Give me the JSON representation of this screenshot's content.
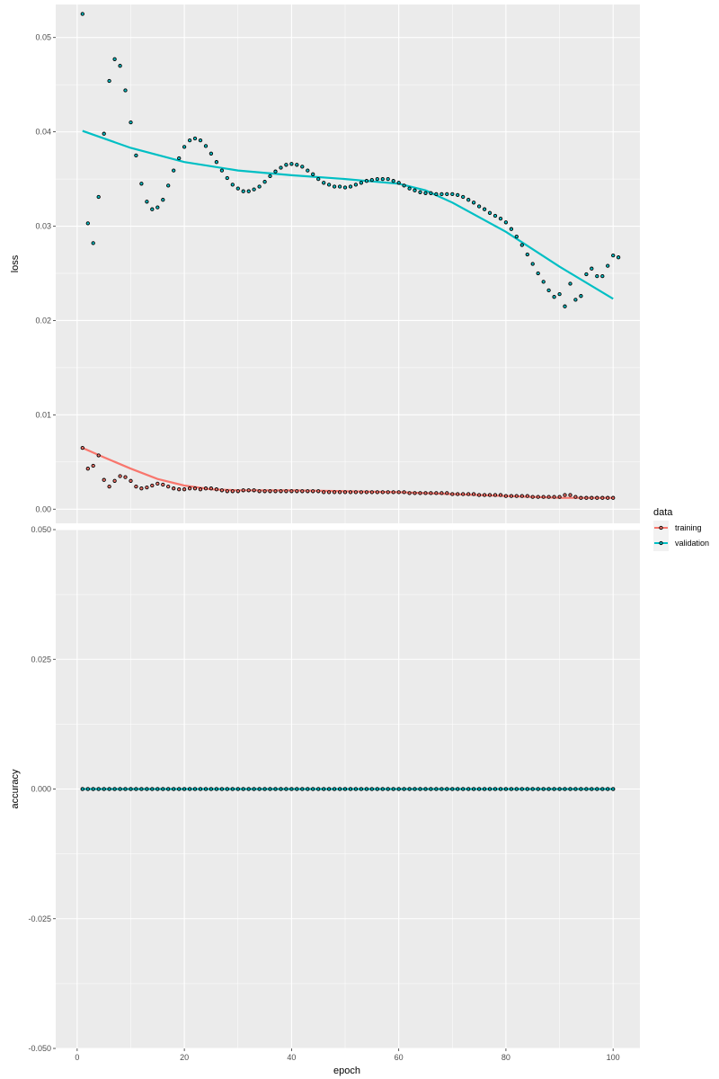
{
  "chart_data": {
    "type": "scatter",
    "facets": [
      {
        "name": "loss",
        "ylabel": "loss",
        "ylim": [
          -0.0015,
          0.0535
        ],
        "yticks": [
          0.0,
          0.01,
          0.02,
          0.03,
          0.04,
          0.05
        ],
        "ytick_labels": [
          "0.00",
          "0.01",
          "0.02",
          "0.03",
          "0.04",
          "0.05"
        ],
        "series": [
          {
            "name": "training",
            "points": [
              [
                1,
                0.0065
              ],
              [
                2,
                0.0043
              ],
              [
                3,
                0.0046
              ],
              [
                4,
                0.0057
              ],
              [
                5,
                0.0031
              ],
              [
                6,
                0.0024
              ],
              [
                7,
                0.003
              ],
              [
                8,
                0.0035
              ],
              [
                9,
                0.0034
              ],
              [
                10,
                0.003
              ],
              [
                11,
                0.0024
              ],
              [
                12,
                0.0022
              ],
              [
                13,
                0.0023
              ],
              [
                14,
                0.0025
              ],
              [
                15,
                0.0027
              ],
              [
                16,
                0.0026
              ],
              [
                17,
                0.0024
              ],
              [
                18,
                0.0022
              ],
              [
                19,
                0.0021
              ],
              [
                20,
                0.0021
              ],
              [
                21,
                0.0022
              ],
              [
                22,
                0.0022
              ],
              [
                23,
                0.0021
              ],
              [
                24,
                0.0022
              ],
              [
                25,
                0.0022
              ],
              [
                26,
                0.0021
              ],
              [
                27,
                0.002
              ],
              [
                28,
                0.0019
              ],
              [
                29,
                0.0019
              ],
              [
                30,
                0.0019
              ],
              [
                31,
                0.002
              ],
              [
                32,
                0.002
              ],
              [
                33,
                0.002
              ],
              [
                34,
                0.0019
              ],
              [
                35,
                0.0019
              ],
              [
                36,
                0.0019
              ],
              [
                37,
                0.0019
              ],
              [
                38,
                0.0019
              ],
              [
                39,
                0.0019
              ],
              [
                40,
                0.0019
              ],
              [
                41,
                0.0019
              ],
              [
                42,
                0.0019
              ],
              [
                43,
                0.0019
              ],
              [
                44,
                0.0019
              ],
              [
                45,
                0.0019
              ],
              [
                46,
                0.0018
              ],
              [
                47,
                0.0018
              ],
              [
                48,
                0.0018
              ],
              [
                49,
                0.0018
              ],
              [
                50,
                0.0018
              ],
              [
                51,
                0.0018
              ],
              [
                52,
                0.0018
              ],
              [
                53,
                0.0018
              ],
              [
                54,
                0.0018
              ],
              [
                55,
                0.0018
              ],
              [
                56,
                0.0018
              ],
              [
                57,
                0.0018
              ],
              [
                58,
                0.0018
              ],
              [
                59,
                0.0018
              ],
              [
                60,
                0.0018
              ],
              [
                61,
                0.0018
              ],
              [
                62,
                0.0017
              ],
              [
                63,
                0.0017
              ],
              [
                64,
                0.0017
              ],
              [
                65,
                0.0017
              ],
              [
                66,
                0.0017
              ],
              [
                67,
                0.0017
              ],
              [
                68,
                0.0017
              ],
              [
                69,
                0.0017
              ],
              [
                70,
                0.0016
              ],
              [
                71,
                0.0016
              ],
              [
                72,
                0.0016
              ],
              [
                73,
                0.0016
              ],
              [
                74,
                0.0016
              ],
              [
                75,
                0.0015
              ],
              [
                76,
                0.0015
              ],
              [
                77,
                0.0015
              ],
              [
                78,
                0.0015
              ],
              [
                79,
                0.0015
              ],
              [
                80,
                0.0014
              ],
              [
                81,
                0.0014
              ],
              [
                82,
                0.0014
              ],
              [
                83,
                0.0014
              ],
              [
                84,
                0.0014
              ],
              [
                85,
                0.0013
              ],
              [
                86,
                0.0013
              ],
              [
                87,
                0.0013
              ],
              [
                88,
                0.0013
              ],
              [
                89,
                0.0013
              ],
              [
                90,
                0.0013
              ],
              [
                91,
                0.0015
              ],
              [
                92,
                0.0015
              ],
              [
                93,
                0.0013
              ],
              [
                94,
                0.0012
              ],
              [
                95,
                0.0012
              ],
              [
                96,
                0.0012
              ],
              [
                97,
                0.0012
              ],
              [
                98,
                0.0012
              ],
              [
                99,
                0.0012
              ],
              [
                100,
                0.0012
              ]
            ],
            "trend": [
              [
                1,
                0.0065
              ],
              [
                5,
                0.0055
              ],
              [
                10,
                0.0043
              ],
              [
                15,
                0.0032
              ],
              [
                20,
                0.0025
              ],
              [
                25,
                0.0021
              ],
              [
                30,
                0.002
              ],
              [
                40,
                0.002
              ],
              [
                50,
                0.0019
              ],
              [
                60,
                0.0018
              ],
              [
                70,
                0.0016
              ],
              [
                80,
                0.0014
              ],
              [
                90,
                0.0012
              ],
              [
                100,
                0.0012
              ]
            ]
          },
          {
            "name": "validation",
            "points": [
              [
                1,
                0.0525
              ],
              [
                2,
                0.0303
              ],
              [
                3,
                0.0282
              ],
              [
                4,
                0.0331
              ],
              [
                5,
                0.0398
              ],
              [
                6,
                0.0454
              ],
              [
                7,
                0.0477
              ],
              [
                8,
                0.047
              ],
              [
                9,
                0.0444
              ],
              [
                10,
                0.041
              ],
              [
                11,
                0.0375
              ],
              [
                12,
                0.0345
              ],
              [
                13,
                0.0326
              ],
              [
                14,
                0.0318
              ],
              [
                15,
                0.032
              ],
              [
                16,
                0.0328
              ],
              [
                17,
                0.0343
              ],
              [
                18,
                0.0359
              ],
              [
                19,
                0.0372
              ],
              [
                20,
                0.0384
              ],
              [
                21,
                0.0391
              ],
              [
                22,
                0.0393
              ],
              [
                23,
                0.0391
              ],
              [
                24,
                0.0385
              ],
              [
                25,
                0.0377
              ],
              [
                26,
                0.0368
              ],
              [
                27,
                0.0359
              ],
              [
                28,
                0.0351
              ],
              [
                29,
                0.0344
              ],
              [
                30,
                0.034
              ],
              [
                31,
                0.0337
              ],
              [
                32,
                0.0337
              ],
              [
                33,
                0.0339
              ],
              [
                34,
                0.0342
              ],
              [
                35,
                0.0347
              ],
              [
                36,
                0.0353
              ],
              [
                37,
                0.0358
              ],
              [
                38,
                0.0362
              ],
              [
                39,
                0.0365
              ],
              [
                40,
                0.0366
              ],
              [
                41,
                0.0365
              ],
              [
                42,
                0.0363
              ],
              [
                43,
                0.0359
              ],
              [
                44,
                0.0355
              ],
              [
                45,
                0.035
              ],
              [
                46,
                0.0346
              ],
              [
                47,
                0.0344
              ],
              [
                48,
                0.0342
              ],
              [
                49,
                0.0342
              ],
              [
                50,
                0.0341
              ],
              [
                51,
                0.0342
              ],
              [
                52,
                0.0344
              ],
              [
                53,
                0.0346
              ],
              [
                54,
                0.0348
              ],
              [
                55,
                0.0349
              ],
              [
                56,
                0.035
              ],
              [
                57,
                0.035
              ],
              [
                58,
                0.035
              ],
              [
                59,
                0.0348
              ],
              [
                60,
                0.0346
              ],
              [
                61,
                0.0343
              ],
              [
                62,
                0.034
              ],
              [
                63,
                0.0338
              ],
              [
                64,
                0.0336
              ],
              [
                65,
                0.0335
              ],
              [
                66,
                0.0335
              ],
              [
                67,
                0.0334
              ],
              [
                68,
                0.0334
              ],
              [
                69,
                0.0334
              ],
              [
                70,
                0.0334
              ],
              [
                71,
                0.0333
              ],
              [
                72,
                0.0331
              ],
              [
                73,
                0.0328
              ],
              [
                74,
                0.0325
              ],
              [
                75,
                0.0321
              ],
              [
                76,
                0.0318
              ],
              [
                77,
                0.0314
              ],
              [
                78,
                0.0311
              ],
              [
                79,
                0.0308
              ],
              [
                80,
                0.0304
              ],
              [
                81,
                0.0297
              ],
              [
                82,
                0.0289
              ],
              [
                83,
                0.028
              ],
              [
                84,
                0.027
              ],
              [
                85,
                0.026
              ],
              [
                86,
                0.025
              ],
              [
                87,
                0.0241
              ],
              [
                88,
                0.0232
              ],
              [
                89,
                0.0225
              ],
              [
                90,
                0.0228
              ],
              [
                91,
                0.0215
              ],
              [
                92,
                0.0239
              ],
              [
                93,
                0.0222
              ],
              [
                94,
                0.0226
              ],
              [
                95,
                0.0249
              ],
              [
                96,
                0.0255
              ],
              [
                97,
                0.0247
              ],
              [
                98,
                0.0247
              ],
              [
                99,
                0.0258
              ],
              [
                100,
                0.0269
              ],
              [
                101,
                0.0267
              ]
            ],
            "trend": [
              [
                1,
                0.0401
              ],
              [
                10,
                0.0383
              ],
              [
                20,
                0.0368
              ],
              [
                30,
                0.0359
              ],
              [
                40,
                0.0354
              ],
              [
                50,
                0.035
              ],
              [
                60,
                0.0345
              ],
              [
                65,
                0.0338
              ],
              [
                70,
                0.0325
              ],
              [
                80,
                0.0294
              ],
              [
                90,
                0.0257
              ],
              [
                100,
                0.0223
              ]
            ]
          }
        ]
      },
      {
        "name": "accuracy",
        "ylabel": "accuracy",
        "ylim": [
          -0.05,
          0.05
        ],
        "yticks": [
          -0.05,
          -0.025,
          0.0,
          0.025,
          0.05
        ],
        "ytick_labels": [
          "-0.050",
          "-0.025",
          "0.000",
          "0.025",
          "0.050"
        ],
        "series": [
          {
            "name": "training",
            "constant_value": 0.0,
            "x_range": [
              1,
              100
            ]
          },
          {
            "name": "validation",
            "constant_value": 0.0,
            "x_range": [
              1,
              100
            ]
          }
        ]
      }
    ],
    "xlabel": "epoch",
    "xlim": [
      -4,
      105
    ],
    "xticks": [
      0,
      20,
      40,
      60,
      80,
      100
    ],
    "xtick_labels": [
      "0",
      "20",
      "40",
      "60",
      "80",
      "100"
    ],
    "legend": {
      "title": "data",
      "position": "right",
      "entries": [
        "training",
        "validation"
      ]
    },
    "colors": {
      "training": "#F8766D",
      "validation": "#00BFC4",
      "panel_background": "#EBEBEB",
      "grid": "#FFFFFF",
      "point_outline": "#000000"
    },
    "grid": true
  }
}
